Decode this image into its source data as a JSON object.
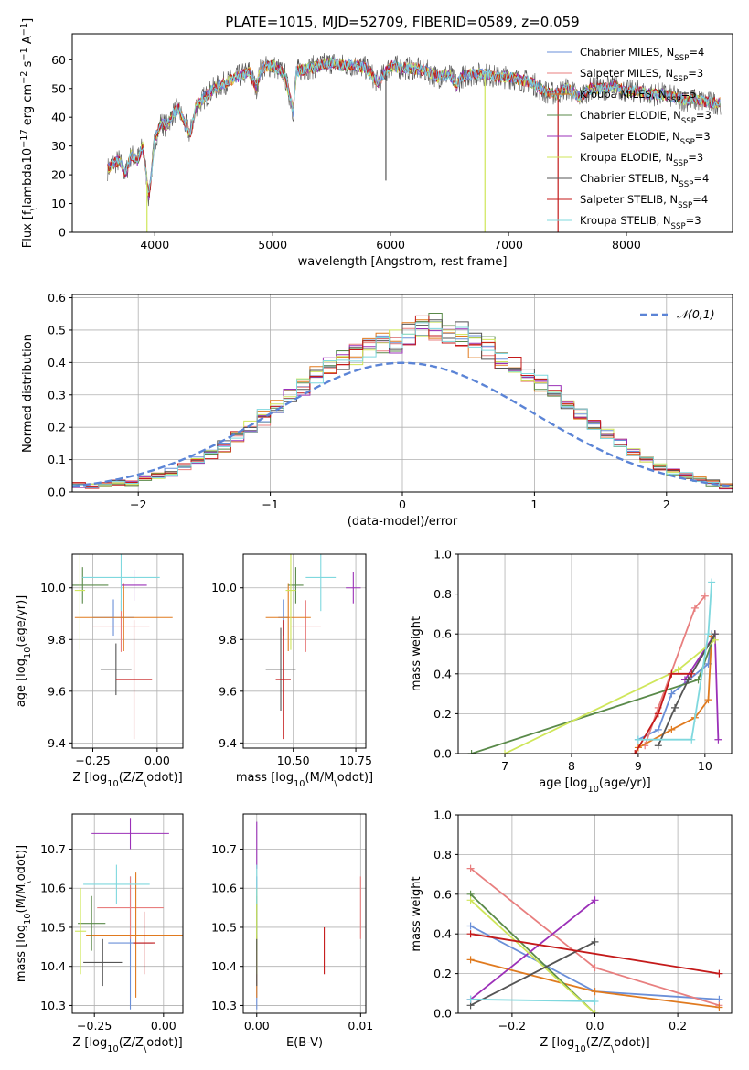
{
  "figure": {
    "title": "PLATE=1015, MJD=52709, FIBERID=0589, z=0.059"
  },
  "models": [
    {
      "label": "Chabrier MILES, N$_{SSP}$=4",
      "base": "Chabrier MILES, N",
      "sub": "SSP",
      "tail": "=4",
      "color": "#6a8fd8"
    },
    {
      "label": "Salpeter MILES, N$_{SSP}$=3",
      "base": "Salpeter MILES, N",
      "sub": "SSP",
      "tail": "=3",
      "color": "#e87f7f"
    },
    {
      "label": "Kroupa MILES, N$_{SSP}$=5",
      "base": "Kroupa MILES, N",
      "sub": "SSP",
      "tail": "=5",
      "color": "#e07a1f"
    },
    {
      "label": "Chabrier ELODIE, N$_{SSP}$=3",
      "base": "Chabrier ELODIE, N",
      "sub": "SSP",
      "tail": "=3",
      "color": "#5a8a4a"
    },
    {
      "label": "Salpeter ELODIE, N$_{SSP}$=3",
      "base": "Salpeter ELODIE, N",
      "sub": "SSP",
      "tail": "=3",
      "color": "#9b30b8"
    },
    {
      "label": "Kroupa ELODIE, N$_{SSP}$=3",
      "base": "Kroupa ELODIE, N",
      "sub": "SSP",
      "tail": "=3",
      "color": "#cfe65a"
    },
    {
      "label": "Chabrier STELIB, N$_{SSP}$=4",
      "base": "Chabrier STELIB, N",
      "sub": "SSP",
      "tail": "=4",
      "color": "#555555"
    },
    {
      "label": "Salpeter STELIB, N$_{SSP}$=4",
      "base": "Salpeter STELIB, N",
      "sub": "SSP",
      "tail": "=4",
      "color": "#c41a1a"
    },
    {
      "label": "Kroupa STELIB, N$_{SSP}$=3",
      "base": "Kroupa STELIB, N",
      "sub": "SSP",
      "tail": "=3",
      "color": "#7fd8de"
    }
  ],
  "chart_data": [
    {
      "id": "spectrum",
      "type": "line",
      "title": "PLATE=1015, MJD=52709, FIBERID=0589, z=0.059",
      "xlabel": "wavelength [Angstrom, rest frame]",
      "ylabel": "Flux [f$_\\lambda$10$^{-17}$ erg cm$^{-2}$ s$^{-1}$ A$^{-1}$]",
      "xlim": [
        3300,
        8900
      ],
      "ylim": [
        0,
        69
      ],
      "xticks": [
        4000,
        5000,
        6000,
        7000,
        8000
      ],
      "yticks": [
        0,
        10,
        20,
        30,
        40,
        50,
        60
      ],
      "grid": false,
      "legend": "top-right",
      "x": [
        3600,
        3650,
        3700,
        3750,
        3800,
        3850,
        3900,
        3950,
        4000,
        4050,
        4100,
        4150,
        4200,
        4250,
        4300,
        4350,
        4400,
        4450,
        4500,
        4600,
        4700,
        4800,
        4861,
        4900,
        5000,
        5100,
        5175,
        5200,
        5300,
        5400,
        5500,
        5600,
        5700,
        5800,
        5890,
        6000,
        6100,
        6200,
        6300,
        6400,
        6500,
        6563,
        6600,
        6700,
        6800,
        6900,
        7000,
        7100,
        7200,
        7300,
        7400,
        7500,
        7600,
        7700,
        7800,
        7900,
        8000,
        8100,
        8200,
        8300,
        8400,
        8500,
        8600,
        8700,
        8800
      ],
      "flux": [
        22,
        24,
        25,
        20,
        27,
        25,
        30,
        12,
        32,
        38,
        37,
        41,
        43,
        38,
        34,
        44,
        46,
        48,
        50,
        52,
        54,
        56,
        50,
        57,
        58,
        55,
        42,
        56,
        57,
        58,
        59,
        58,
        58,
        57,
        52,
        58,
        57,
        57,
        56,
        54,
        55,
        51,
        54,
        55,
        55,
        54,
        54,
        53,
        52,
        49,
        48,
        50,
        47,
        50,
        50,
        51,
        49,
        49,
        48,
        48,
        47,
        46,
        46,
        45,
        45
      ],
      "drops": [
        {
          "x": 3934,
          "y": 0,
          "color": "#cfe65a"
        },
        {
          "x": 5960,
          "y": 18,
          "color": "#555555"
        },
        {
          "x": 6800,
          "y": 0,
          "color": "#cfe65a"
        },
        {
          "x": 7420,
          "y": 0,
          "color": "#c41a1a"
        }
      ]
    },
    {
      "id": "residuals",
      "type": "bar",
      "xlabel": "(data-model)/error",
      "ylabel": "Normed distribution",
      "xlim": [
        -2.5,
        2.5
      ],
      "ylim": [
        0,
        0.61
      ],
      "xticks": [
        -2,
        -1,
        0,
        1,
        2
      ],
      "yticks": [
        0.0,
        0.1,
        0.2,
        0.3,
        0.4,
        0.5,
        0.6
      ],
      "grid": true,
      "legend": "top-right",
      "reference_curve": {
        "label": "$\\mathcal{N}(0,1)$",
        "mean": 0,
        "sigma": 1,
        "color": "#5b84d6"
      },
      "bin_width": 0.1,
      "base_heights": [
        0.02,
        0.02,
        0.02,
        0.03,
        0.03,
        0.04,
        0.05,
        0.06,
        0.08,
        0.1,
        0.12,
        0.14,
        0.17,
        0.2,
        0.23,
        0.26,
        0.3,
        0.33,
        0.36,
        0.39,
        0.41,
        0.43,
        0.45,
        0.46,
        0.47,
        0.49,
        0.5,
        0.51,
        0.49,
        0.48,
        0.46,
        0.44,
        0.41,
        0.39,
        0.36,
        0.33,
        0.3,
        0.27,
        0.24,
        0.21,
        0.18,
        0.15,
        0.12,
        0.1,
        0.08,
        0.06,
        0.05,
        0.04,
        0.03,
        0.02
      ]
    },
    {
      "id": "age-vs-Z",
      "type": "scatter",
      "xlabel": "Z [log$_{10}$(Z/Z$_\\odot$)]",
      "ylabel": "age  [log$_{10}$(age/yr)]",
      "xlim": [
        -0.33,
        0.1
      ],
      "ylim": [
        9.38,
        10.13
      ],
      "xticks": [
        -0.25,
        0.0
      ],
      "xticklabels": [
        "−0.25",
        "0.00"
      ],
      "yticks": [
        9.4,
        9.6,
        9.8,
        10.0
      ],
      "yticklabels": [
        "9.4",
        "9.6",
        "9.8",
        "10.0"
      ],
      "grid": true,
      "points": [
        {
          "x": -0.17,
          "y": 9.885,
          "xerr": 0.08,
          "yerr": 0.07
        },
        {
          "x": -0.14,
          "y": 9.852,
          "xerr": 0.11,
          "yerr": 0.1
        },
        {
          "x": -0.13,
          "y": 9.885,
          "xerr": 0.19,
          "yerr": 0.13
        },
        {
          "x": -0.29,
          "y": 10.01,
          "xerr": 0.1,
          "yerr": 0.07
        },
        {
          "x": -0.09,
          "y": 10.01,
          "xerr": 0.05,
          "yerr": 0.06
        },
        {
          "x": -0.3,
          "y": 9.99,
          "xerr": 0.02,
          "yerr": 0.23
        },
        {
          "x": -0.16,
          "y": 9.685,
          "xerr": 0.06,
          "yerr": 0.1
        },
        {
          "x": -0.09,
          "y": 9.645,
          "xerr": 0.07,
          "yerr": 0.23
        },
        {
          "x": -0.14,
          "y": 10.04,
          "xerr": 0.15,
          "yerr": 0.13
        }
      ]
    },
    {
      "id": "age-vs-mass",
      "type": "scatter",
      "xlabel": "mass [log$_{10}$(M/M$_\\odot$)]",
      "ylabel": "",
      "xlim": [
        10.3,
        10.79
      ],
      "ylim": [
        9.38,
        10.13
      ],
      "xticks": [
        10.5,
        10.75
      ],
      "xticklabels": [
        "10.50",
        "10.75"
      ],
      "yticks": [
        9.4,
        9.6,
        9.8,
        10.0
      ],
      "yticklabels": [
        "9.4",
        "9.6",
        "9.8",
        "10.0"
      ],
      "grid": true,
      "points": [
        {
          "x": 10.46,
          "y": 9.885,
          "xerr": 0.02,
          "yerr": 0.07
        },
        {
          "x": 10.55,
          "y": 9.852,
          "xerr": 0.06,
          "yerr": 0.1
        },
        {
          "x": 10.48,
          "y": 9.885,
          "xerr": 0.09,
          "yerr": 0.13
        },
        {
          "x": 10.51,
          "y": 10.01,
          "xerr": 0.03,
          "yerr": 0.07
        },
        {
          "x": 10.74,
          "y": 10.0,
          "xerr": 0.03,
          "yerr": 0.06
        },
        {
          "x": 10.49,
          "y": 9.99,
          "xerr": 0.02,
          "yerr": 0.23
        },
        {
          "x": 10.45,
          "y": 9.685,
          "xerr": 0.06,
          "yerr": 0.16
        },
        {
          "x": 10.46,
          "y": 9.645,
          "xerr": 0.03,
          "yerr": 0.23
        },
        {
          "x": 10.61,
          "y": 10.04,
          "xerr": 0.06,
          "yerr": 0.13
        }
      ]
    },
    {
      "id": "weight-vs-age",
      "type": "line",
      "xlabel": "age  [log$_{10}$(age/yr)]",
      "ylabel": "mass weight",
      "xlim": [
        6.3,
        10.4
      ],
      "ylim": [
        0,
        1
      ],
      "xticks": [
        7,
        8,
        9,
        10
      ],
      "yticks": [
        0.0,
        0.2,
        0.4,
        0.6,
        0.8,
        1.0
      ],
      "yticklabels": [
        "0.0",
        "0.2",
        "0.4",
        "0.6",
        "0.8",
        "1.0"
      ],
      "grid": true,
      "series": [
        {
          "x": [
            9.0,
            9.3,
            9.5,
            10.05,
            10.1
          ],
          "y": [
            0.07,
            0.12,
            0.3,
            0.45,
            0.6
          ]
        },
        {
          "x": [
            9.1,
            9.3,
            9.85,
            10.0
          ],
          "y": [
            0.04,
            0.23,
            0.73,
            0.79
          ]
        },
        {
          "x": [
            9.0,
            9.5,
            9.85,
            10.05,
            10.1
          ],
          "y": [
            0.03,
            0.12,
            0.18,
            0.27,
            0.59
          ]
        },
        {
          "x": [
            6.5,
            9.9,
            10.15
          ],
          "y": [
            0.0,
            0.37,
            0.6
          ]
        },
        {
          "x": [
            9.7,
            10.15,
            10.2
          ],
          "y": [
            0.37,
            0.6,
            0.07
          ]
        },
        {
          "x": [
            7.0,
            9.6,
            10.15
          ],
          "y": [
            0.0,
            0.42,
            0.57
          ]
        },
        {
          "x": [
            9.3,
            9.55,
            9.75,
            10.15
          ],
          "y": [
            0.04,
            0.23,
            0.37,
            0.6
          ]
        },
        {
          "x": [
            8.95,
            9.3,
            9.5,
            9.8
          ],
          "y": [
            0.0,
            0.2,
            0.4,
            0.4
          ]
        },
        {
          "x": [
            9.0,
            9.8,
            10.05,
            10.1
          ],
          "y": [
            0.07,
            0.07,
            0.6,
            0.86
          ]
        }
      ]
    },
    {
      "id": "mass-vs-Z",
      "type": "scatter",
      "xlabel": "Z [log$_{10}$(Z/Z$_\\odot$)]",
      "ylabel": "mass [log$_{10}$(M/M$_\\odot$)]",
      "xlim": [
        -0.33,
        0.07
      ],
      "ylim": [
        10.28,
        10.79
      ],
      "xticks": [
        -0.25,
        0.0
      ],
      "xticklabels": [
        "−0.25",
        "0.00"
      ],
      "yticks": [
        10.3,
        10.4,
        10.5,
        10.6,
        10.7
      ],
      "yticklabels": [
        "10.3",
        "10.4",
        "10.5",
        "10.6",
        "10.7"
      ],
      "grid": true,
      "points": [
        {
          "x": -0.12,
          "y": 10.46,
          "xerr": 0.08,
          "yerr": 0.17
        },
        {
          "x": -0.12,
          "y": 10.55,
          "xerr": 0.12,
          "yerr": 0.08
        },
        {
          "x": -0.1,
          "y": 10.48,
          "xerr": 0.18,
          "yerr": 0.16
        },
        {
          "x": -0.26,
          "y": 10.51,
          "xerr": 0.05,
          "yerr": 0.07
        },
        {
          "x": -0.12,
          "y": 10.74,
          "xerr": 0.14,
          "yerr": 0.04
        },
        {
          "x": -0.3,
          "y": 10.49,
          "xerr": 0.02,
          "yerr": 0.11
        },
        {
          "x": -0.22,
          "y": 10.41,
          "xerr": 0.07,
          "yerr": 0.06
        },
        {
          "x": -0.07,
          "y": 10.46,
          "xerr": 0.04,
          "yerr": 0.08
        },
        {
          "x": -0.17,
          "y": 10.61,
          "xerr": 0.12,
          "yerr": 0.05
        }
      ]
    },
    {
      "id": "mass-vs-EBV",
      "type": "scatter",
      "xlabel": "E(B-V)",
      "ylabel": "",
      "xlim": [
        -0.0013,
        0.0105
      ],
      "ylim": [
        10.28,
        10.79
      ],
      "xticks": [
        0.0,
        0.01
      ],
      "xticklabels": [
        "0.00",
        "0.01"
      ],
      "yticks": [
        10.3,
        10.4,
        10.5,
        10.6,
        10.7
      ],
      "yticklabels": [
        "10.3",
        "10.4",
        "10.5",
        "10.6",
        "10.7"
      ],
      "grid": true,
      "points": [
        {
          "x": 0.0,
          "y": 10.46,
          "xerr": 0,
          "yerr": 0.17
        },
        {
          "x": 0.01,
          "y": 10.55,
          "xerr": 0,
          "yerr": 0.08
        },
        {
          "x": 0.0,
          "y": 10.4,
          "xerr": 0,
          "yerr": 0.08
        },
        {
          "x": 0.0,
          "y": 10.51,
          "xerr": 0,
          "yerr": 0.07
        },
        {
          "x": 0.0,
          "y": 10.71,
          "xerr": 0,
          "yerr": 0.06
        },
        {
          "x": 0.0,
          "y": 10.49,
          "xerr": 0,
          "yerr": 0.11
        },
        {
          "x": 0.0,
          "y": 10.41,
          "xerr": 0,
          "yerr": 0.06
        },
        {
          "x": 0.0065,
          "y": 10.44,
          "xerr": 0,
          "yerr": 0.06
        },
        {
          "x": 0.0,
          "y": 10.61,
          "xerr": 0,
          "yerr": 0.05
        }
      ]
    },
    {
      "id": "weight-vs-Z",
      "type": "line",
      "xlabel": "Z [log$_{10}$(Z/Z$_\\odot$)]",
      "ylabel": "mass weight",
      "xlim": [
        -0.33,
        0.33
      ],
      "ylim": [
        0,
        1
      ],
      "xticks": [
        -0.2,
        0.0,
        0.2
      ],
      "xticklabels": [
        "−0.2",
        "0.0",
        "0.2"
      ],
      "yticks": [
        0.0,
        0.2,
        0.4,
        0.6,
        0.8,
        1.0
      ],
      "yticklabels": [
        "0.0",
        "0.2",
        "0.4",
        "0.6",
        "0.8",
        "1.0"
      ],
      "grid": true,
      "series": [
        {
          "x": [
            -0.3,
            0.0,
            0.3
          ],
          "y": [
            0.44,
            0.11,
            0.07
          ]
        },
        {
          "x": [
            -0.3,
            0.0,
            0.3
          ],
          "y": [
            0.73,
            0.23,
            0.04
          ]
        },
        {
          "x": [
            -0.3,
            0.0,
            0.3
          ],
          "y": [
            0.27,
            0.11,
            0.03
          ]
        },
        {
          "x": [
            -0.3,
            0.0
          ],
          "y": [
            0.6,
            0.0
          ]
        },
        {
          "x": [
            -0.3,
            0.0
          ],
          "y": [
            0.07,
            0.57
          ]
        },
        {
          "x": [
            -0.3,
            0.0
          ],
          "y": [
            0.57,
            0.0
          ]
        },
        {
          "x": [
            -0.3,
            0.0
          ],
          "y": [
            0.04,
            0.36
          ]
        },
        {
          "x": [
            -0.3,
            0.3
          ],
          "y": [
            0.4,
            0.2
          ]
        },
        {
          "x": [
            -0.3,
            0.0
          ],
          "y": [
            0.07,
            0.06
          ]
        }
      ]
    }
  ]
}
